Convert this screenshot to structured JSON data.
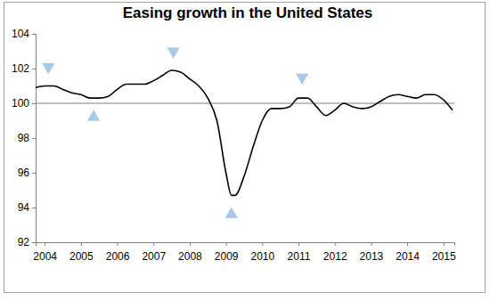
{
  "chart_data": {
    "type": "line",
    "title": "Easing growth in the United States",
    "x": [
      2003.75,
      2004.0,
      2004.25,
      2004.5,
      2004.75,
      2005.0,
      2005.25,
      2005.5,
      2005.75,
      2006.0,
      2006.25,
      2006.5,
      2006.75,
      2007.0,
      2007.25,
      2007.5,
      2007.75,
      2008.0,
      2008.25,
      2008.5,
      2008.75,
      2009.0,
      2009.15,
      2009.25,
      2009.5,
      2009.75,
      2010.0,
      2010.25,
      2010.5,
      2010.75,
      2011.0,
      2011.25,
      2011.5,
      2011.75,
      2012.0,
      2012.25,
      2012.5,
      2012.75,
      2013.0,
      2013.25,
      2013.5,
      2013.75,
      2014.0,
      2014.25,
      2014.5,
      2014.75,
      2015.0,
      2015.25
    ],
    "series": [
      {
        "type": "line",
        "color": "#000000",
        "values": [
          100.9,
          101.0,
          101.0,
          100.8,
          100.6,
          100.5,
          100.3,
          100.3,
          100.4,
          100.8,
          101.1,
          101.1,
          101.1,
          101.3,
          101.6,
          101.9,
          101.8,
          101.4,
          101.0,
          100.3,
          99.0,
          96.0,
          94.7,
          94.7,
          95.8,
          97.5,
          99.0,
          99.7,
          99.7,
          99.8,
          100.3,
          100.3,
          99.8,
          99.3,
          99.6,
          100.0,
          99.8,
          99.7,
          99.8,
          100.1,
          100.4,
          100.5,
          100.4,
          100.3,
          100.5,
          100.5,
          100.2,
          99.6
        ]
      },
      {
        "type": "scatter",
        "marker": "triangle-down",
        "color": "#a8c8e6",
        "x": [
          2004.1,
          2007.55,
          2011.1
        ],
        "values": [
          102.1,
          103.0,
          101.5
        ]
      },
      {
        "type": "scatter",
        "marker": "triangle-up",
        "color": "#a8c8e6",
        "x": [
          2005.35,
          2009.15
        ],
        "values": [
          99.2,
          93.6
        ]
      }
    ],
    "hline": 100,
    "xlim": [
      2003.75,
      2015.3
    ],
    "xticks": [
      2004,
      2005,
      2006,
      2007,
      2008,
      2009,
      2010,
      2011,
      2012,
      2013,
      2014,
      2015
    ],
    "ylim": [
      92,
      104
    ],
    "yticks": [
      92,
      94,
      96,
      98,
      100,
      102,
      104
    ],
    "grid": false
  }
}
